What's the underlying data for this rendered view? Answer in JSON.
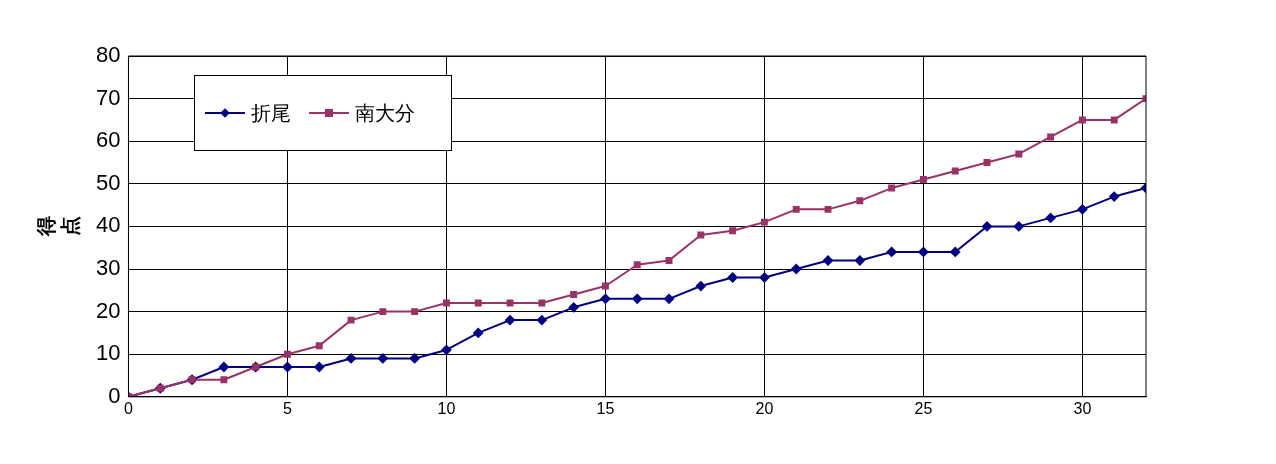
{
  "chart_data": {
    "type": "line",
    "ylabel": "得点",
    "x": [
      0,
      1,
      2,
      3,
      4,
      5,
      6,
      7,
      8,
      9,
      10,
      11,
      12,
      13,
      14,
      15,
      16,
      17,
      18,
      19,
      20,
      21,
      22,
      23,
      24,
      25,
      26,
      27,
      28,
      29,
      30,
      31,
      32
    ],
    "series": [
      {
        "name": "折尾",
        "color": "#000080",
        "marker": "diamond",
        "values": [
          0,
          2,
          4,
          7,
          7,
          7,
          7,
          9,
          9,
          9,
          11,
          15,
          18,
          18,
          21,
          23,
          23,
          23,
          26,
          28,
          28,
          30,
          32,
          32,
          34,
          34,
          34,
          40,
          40,
          42,
          44,
          47,
          49
        ]
      },
      {
        "name": "南大分",
        "color": "#993366",
        "marker": "square",
        "values": [
          0,
          2,
          4,
          4,
          7,
          10,
          12,
          18,
          20,
          20,
          22,
          22,
          22,
          22,
          24,
          26,
          31,
          32,
          38,
          39,
          41,
          44,
          44,
          46,
          49,
          51,
          53,
          55,
          57,
          61,
          65,
          65,
          70
        ]
      }
    ],
    "xlim": [
      0,
      32
    ],
    "xticks": [
      0,
      5,
      10,
      15,
      20,
      25,
      30
    ],
    "ylim": [
      0,
      80
    ],
    "yticks": [
      0,
      10,
      20,
      30,
      40,
      50,
      60,
      70,
      80
    ],
    "grid": true,
    "legend": "top left",
    "line_style": "solid"
  }
}
